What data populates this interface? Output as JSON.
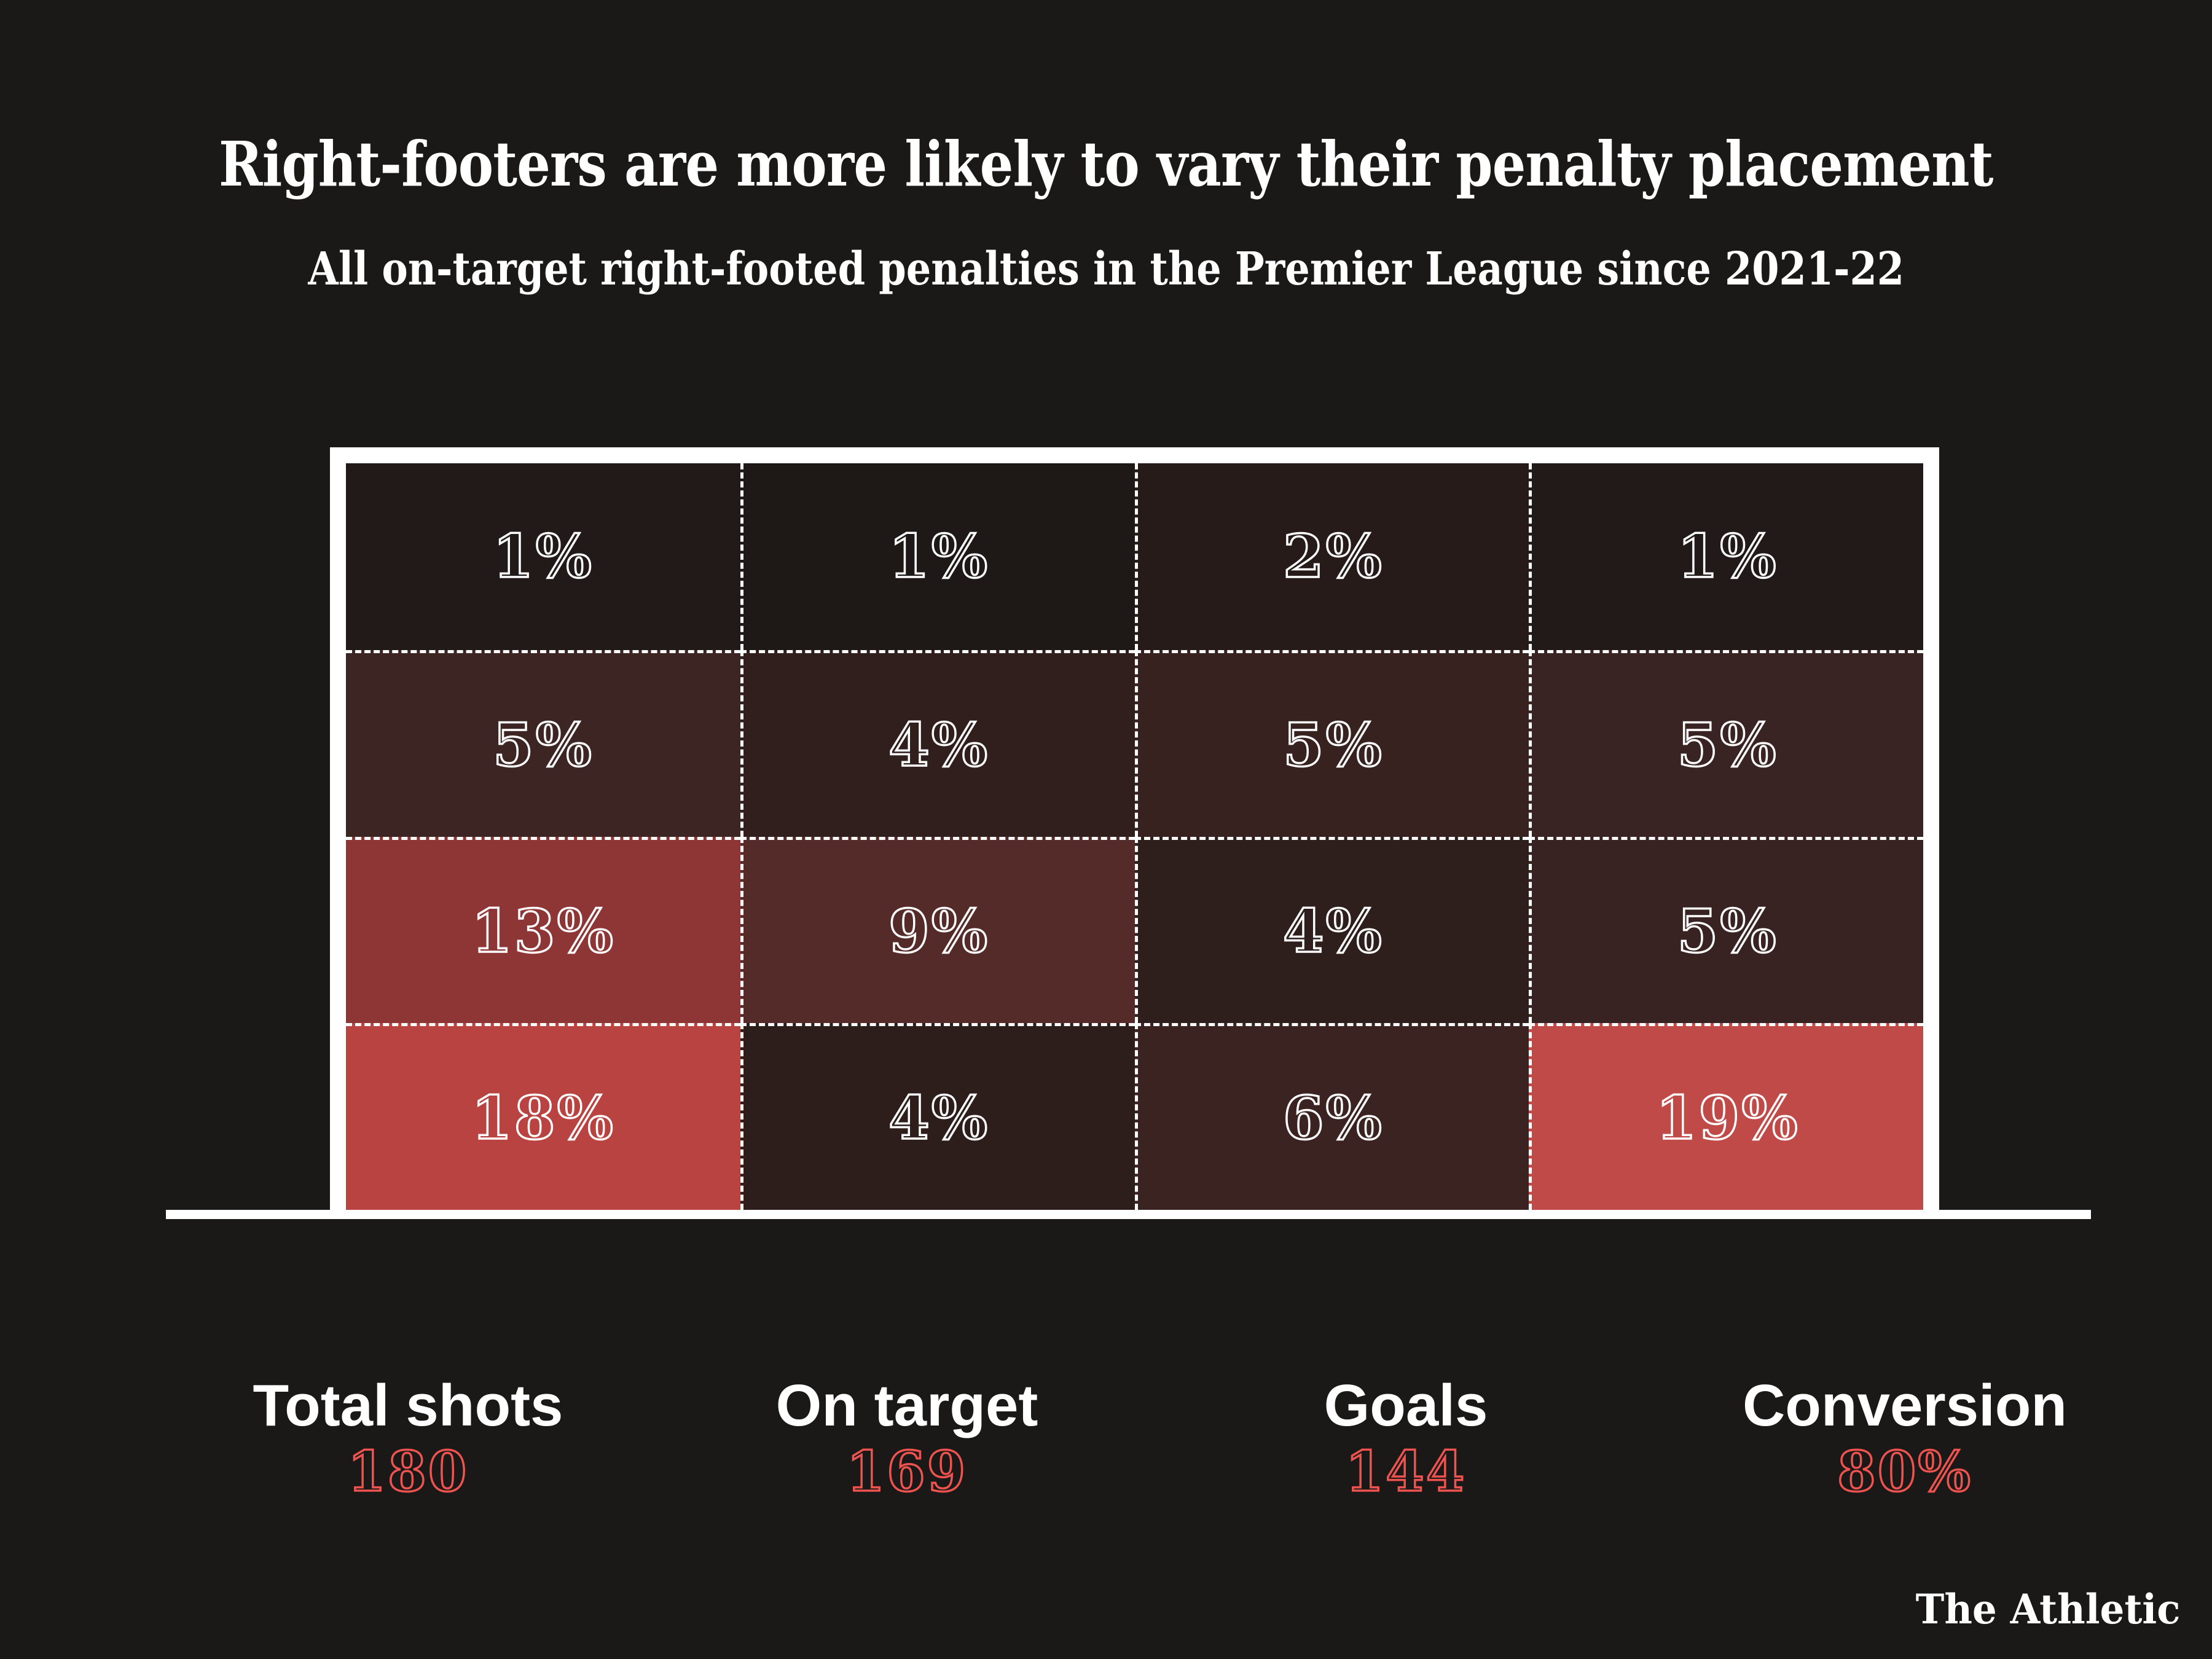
{
  "page": {
    "background": "#1a1918",
    "text_color": "#ffffff",
    "accent_red": "#ef5350"
  },
  "header": {
    "title": "Right-footers are more likely to vary their penalty placement",
    "subtitle": "All on-target right-footed penalties in the Premier League since 2021-22"
  },
  "chart_data": {
    "type": "heatmap",
    "title": "Right-footers are more likely to vary their penalty placement",
    "subtitle": "All on-target right-footed penalties in the Premier League since 2021-22",
    "description": "Goalmouth drawn as a white goal frame over a 4x4 grid of zones; each zone shows the share of all on-target right-footed Premier League penalties since 2021-22 placed there. Darker = fewer, brighter red = more.",
    "rows": [
      "top",
      "upper-middle",
      "lower-middle",
      "bottom"
    ],
    "columns": [
      "far-left",
      "centre-left",
      "centre-right",
      "far-right"
    ],
    "values_percent": [
      [
        1,
        1,
        2,
        1
      ],
      [
        5,
        4,
        5,
        5
      ],
      [
        13,
        9,
        4,
        5
      ],
      [
        18,
        4,
        6,
        19
      ]
    ],
    "cell_labels": [
      [
        "1%",
        "1%",
        "2%",
        "1%"
      ],
      [
        "5%",
        "4%",
        "5%",
        "5%"
      ],
      [
        "13%",
        "9%",
        "4%",
        "5%"
      ],
      [
        "18%",
        "4%",
        "6%",
        "19%"
      ]
    ],
    "cell_colors": [
      [
        "#211a18",
        "#1e1917",
        "#261b19",
        "#211a18"
      ],
      [
        "#3c2523",
        "#301f1d",
        "#372220",
        "#3a2423"
      ],
      [
        "#8e3636",
        "#552b29",
        "#2e1e1c",
        "#382322"
      ],
      [
        "#b94340",
        "#2d1e1c",
        "#3b2321",
        "#bf4a47"
      ]
    ],
    "grid_line_style": "dotted-white",
    "legend_position": "none"
  },
  "goal": {
    "frame_color": "#ffffff",
    "line_color": "#ffffff"
  },
  "stats": [
    {
      "label": "Total shots",
      "value": "180"
    },
    {
      "label": "On target",
      "value": "169"
    },
    {
      "label": "Goals",
      "value": "144"
    },
    {
      "label": "Conversion",
      "value": "80%"
    }
  ],
  "footer": {
    "brand": "The Athletic"
  }
}
